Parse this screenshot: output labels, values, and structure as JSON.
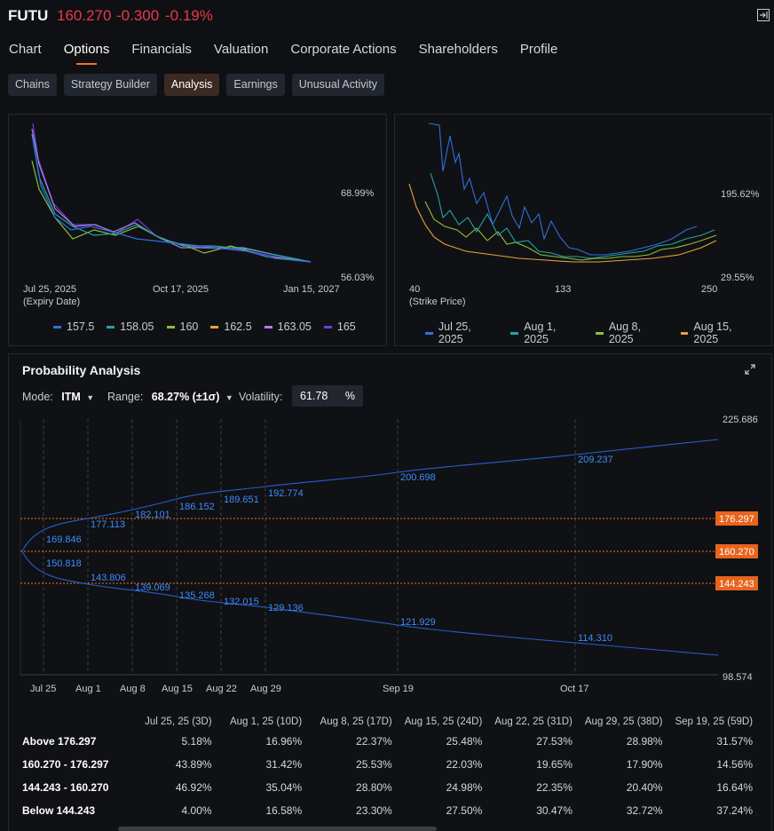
{
  "header": {
    "symbol": "FUTU",
    "price": "160.270",
    "change": "-0.300",
    "change_pct": "-0.19%"
  },
  "nav": {
    "tabs": [
      "Chart",
      "Options",
      "Financials",
      "Valuation",
      "Corporate Actions",
      "Shareholders",
      "Profile"
    ],
    "active": "Options"
  },
  "subtabs": {
    "items": [
      "Chains",
      "Strategy Builder",
      "Analysis",
      "Earnings",
      "Unusual Activity"
    ],
    "active": "Analysis"
  },
  "left_chart": {
    "x_ticks": [
      "Jul 25, 2025",
      "Oct 17, 2025",
      "Jan 15, 2027"
    ],
    "x_unit": "(Expiry Date)",
    "y_labels": [
      "68.99%",
      "56.03%"
    ],
    "legend": [
      {
        "name": "157.5",
        "color": "#2f6fe0"
      },
      {
        "name": "158.05",
        "color": "#22a5a0"
      },
      {
        "name": "160",
        "color": "#8bbf3a"
      },
      {
        "name": "162.5",
        "color": "#e8a23a"
      },
      {
        "name": "163.05",
        "color": "#b57ce8"
      },
      {
        "name": "165",
        "color": "#6b3fd8"
      }
    ]
  },
  "right_chart": {
    "x_ticks": [
      "40",
      "133",
      "250"
    ],
    "x_unit": "(Strike Price)",
    "y_labels": [
      "195.62%",
      "29.55%"
    ],
    "legend": [
      {
        "name": "Jul 25, 2025",
        "color": "#2f6fe0"
      },
      {
        "name": "Aug 1, 2025",
        "color": "#22a5a0"
      },
      {
        "name": "Aug 8, 2025",
        "color": "#8bbf3a"
      },
      {
        "name": "Aug 15, 2025",
        "color": "#e8a23a"
      }
    ]
  },
  "probability": {
    "title": "Probability Analysis",
    "mode_label": "Mode:",
    "mode_value": "ITM",
    "range_label": "Range:",
    "range_value": "68.27% (±1σ)",
    "vol_label": "Volatility:",
    "vol_value": "61.78",
    "vol_unit": "%",
    "y_top": "225.686",
    "y_bottom": "98.574",
    "price_tags": [
      "176.297",
      "160.270",
      "144.243"
    ],
    "x_ticks": [
      "Jul 25",
      "Aug 1",
      "Aug 8",
      "Aug 15",
      "Aug 22",
      "Aug 29",
      "Sep 19",
      "Oct 17"
    ],
    "upper_labels": [
      "169.846",
      "177.113",
      "182.101",
      "186.152",
      "189.651",
      "192.774",
      "200.698",
      "209.237"
    ],
    "lower_labels": [
      "150.818",
      "143.806",
      "139.069",
      "135.268",
      "132.015",
      "129.136",
      "121.929",
      "114.310"
    ]
  },
  "table": {
    "columns": [
      "Jul 25, 25 (3D)",
      "Aug 1, 25 (10D)",
      "Aug 8, 25 (17D)",
      "Aug 15, 25 (24D)",
      "Aug 22, 25 (31D)",
      "Aug 29, 25 (38D)",
      "Sep 19, 25 (59D)"
    ],
    "rows": [
      {
        "label": "Above 176.297",
        "values": [
          "5.18%",
          "16.96%",
          "22.37%",
          "25.48%",
          "27.53%",
          "28.98%",
          "31.57%"
        ]
      },
      {
        "label": "160.270 - 176.297",
        "values": [
          "43.89%",
          "31.42%",
          "25.53%",
          "22.03%",
          "19.65%",
          "17.90%",
          "14.56%"
        ]
      },
      {
        "label": "144.243 - 160.270",
        "values": [
          "46.92%",
          "35.04%",
          "28.80%",
          "24.98%",
          "22.35%",
          "20.40%",
          "16.64%"
        ]
      },
      {
        "label": "Below 144.243",
        "values": [
          "4.00%",
          "16.58%",
          "23.30%",
          "27.50%",
          "30.47%",
          "32.72%",
          "37.24%"
        ]
      }
    ]
  }
}
